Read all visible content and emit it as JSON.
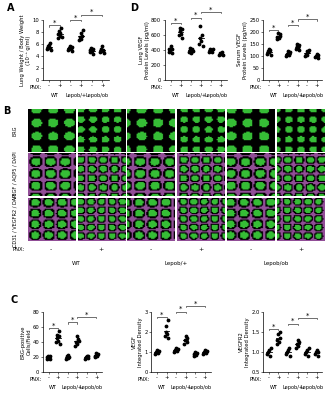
{
  "chart_data": [
    {
      "type": "scatter",
      "panel_label": "A",
      "ylabel": "Lung Weight / Body Weight\n(10⁻³ g/ml)",
      "xlabel": "PNX:",
      "categories": [
        "-",
        "+",
        "-",
        "+",
        "-",
        "+"
      ],
      "group_labels": [
        "WT",
        "Lepob/+",
        "Lepob/ob"
      ],
      "color": "#000000",
      "points": [
        [
          5.2,
          5.6,
          5.9,
          5.4,
          6.1,
          5.0
        ],
        [
          7.0,
          7.6,
          8.2,
          7.3,
          7.9,
          8.6,
          7.1
        ],
        [
          5.0,
          5.4,
          5.7,
          5.2,
          4.9,
          5.5
        ],
        [
          6.6,
          7.2,
          7.8,
          6.9,
          7.4,
          8.3
        ],
        [
          4.6,
          5.0,
          5.3,
          4.8,
          4.4,
          5.1
        ],
        [
          4.7,
          5.2,
          5.6,
          4.9,
          5.0,
          4.5
        ]
      ],
      "significance": [
        {
          "from": 0,
          "to": 1,
          "text": "*"
        },
        {
          "from": 2,
          "to": 3,
          "text": "*"
        },
        {
          "from": 3,
          "to": 5,
          "text": "*"
        }
      ],
      "ylim": [
        0,
        10
      ],
      "yticks": [
        0,
        2,
        4,
        6,
        8,
        10
      ]
    },
    {
      "type": "scatter",
      "panel_label": "D",
      "ylabel": "Lung VEGF\nProtein Levels (pg/ml)",
      "xlabel": "PNX:",
      "categories": [
        "-",
        "+",
        "-",
        "+",
        "-",
        "+"
      ],
      "group_labels": [
        "WT",
        "Lepob/+",
        "Lepob/ob"
      ],
      "color": "#000000",
      "points": [
        [
          380,
          420,
          400,
          450,
          360,
          410
        ],
        [
          600,
          650,
          700,
          620,
          560,
          680
        ],
        [
          380,
          400,
          430,
          360,
          410,
          390
        ],
        [
          480,
          560,
          720,
          520,
          600,
          450
        ],
        [
          380,
          420,
          400,
          370,
          410
        ],
        [
          330,
          360,
          350,
          380,
          340
        ]
      ],
      "significance": [
        {
          "from": 0,
          "to": 1,
          "text": "*"
        },
        {
          "from": 2,
          "to": 3,
          "text": "*"
        },
        {
          "from": 3,
          "to": 5,
          "text": "*"
        }
      ],
      "ylim": [
        0,
        800
      ],
      "yticks": [
        0,
        200,
        400,
        600,
        800
      ]
    },
    {
      "type": "scatter",
      "ylabel": "Serum VEGF\nProtein Levels (pg/ml)",
      "xlabel": "PNX:",
      "categories": [
        "-",
        "+",
        "-",
        "+",
        "-",
        "+"
      ],
      "group_labels": [
        "WT",
        "Lepob/+",
        "Lepob/ob"
      ],
      "color": "#000000",
      "points": [
        [
          110,
          120,
          130,
          115,
          125,
          105
        ],
        [
          170,
          180,
          195,
          175,
          185,
          190
        ],
        [
          100,
          110,
          120,
          105,
          115
        ],
        [
          130,
          140,
          150,
          135,
          145,
          125
        ],
        [
          100,
          110,
          120,
          105,
          115,
          125
        ],
        [
          95,
          100,
          110,
          105,
          90
        ]
      ],
      "significance": [
        {
          "from": 0,
          "to": 1,
          "text": "*"
        },
        {
          "from": 2,
          "to": 3,
          "text": "*"
        },
        {
          "from": 3,
          "to": 5,
          "text": "*"
        }
      ],
      "ylim": [
        0,
        250
      ],
      "yticks": [
        0,
        50,
        100,
        150,
        200,
        250
      ]
    },
    {
      "type": "scatter",
      "panel_label": "C",
      "ylabel": "ERG-positive\nCells/Field",
      "xlabel": "PNX:",
      "categories": [
        "-",
        "+",
        "-",
        "+",
        "-",
        "+"
      ],
      "group_labels": [
        "WT",
        "Lepob/+",
        "Lepob/ob"
      ],
      "color": "#000000",
      "points": [
        [
          18,
          20,
          22,
          19,
          21,
          17
        ],
        [
          40,
          45,
          50,
          42,
          48,
          55,
          38
        ],
        [
          18,
          21,
          23,
          19,
          20
        ],
        [
          35,
          40,
          48,
          37,
          44,
          42
        ],
        [
          18,
          20,
          22,
          19,
          21
        ],
        [
          20,
          22,
          25,
          21,
          23,
          24
        ]
      ],
      "significance": [
        {
          "from": 0,
          "to": 1,
          "text": "*"
        },
        {
          "from": 2,
          "to": 3,
          "text": "*"
        },
        {
          "from": 3,
          "to": 5,
          "text": "*"
        }
      ],
      "ylim": [
        0,
        80
      ],
      "yticks": [
        0,
        20,
        40,
        60,
        80
      ]
    },
    {
      "type": "scatter",
      "ylabel": "VEGF\nIntegrated Density",
      "xlabel": "PNX:",
      "categories": [
        "-",
        "+",
        "-",
        "+",
        "-",
        "+"
      ],
      "group_labels": [
        "WT",
        "Lepob/+",
        "Lepob/ob"
      ],
      "color": "#000000",
      "points": [
        [
          0.9,
          1.0,
          1.1,
          0.95,
          1.05
        ],
        [
          1.8,
          2.0,
          2.3,
          1.9,
          2.6,
          1.7
        ],
        [
          1.0,
          1.1,
          1.2,
          1.05,
          1.15
        ],
        [
          1.4,
          1.6,
          1.8,
          1.5,
          1.7
        ],
        [
          0.8,
          0.9,
          1.0,
          0.85,
          0.95
        ],
        [
          0.9,
          1.0,
          1.1,
          0.95,
          1.05
        ]
      ],
      "significance": [
        {
          "from": 0,
          "to": 1,
          "text": "*"
        },
        {
          "from": 2,
          "to": 3,
          "text": "*"
        },
        {
          "from": 3,
          "to": 5,
          "text": "*"
        }
      ],
      "ylim": [
        0,
        3
      ],
      "yticks": [
        0,
        1,
        2,
        3
      ]
    },
    {
      "type": "scatter",
      "ylabel": "VEGFR2\nIntegrated Density",
      "xlabel": "PNX:",
      "categories": [
        "-",
        "+",
        "-",
        "+",
        "-",
        "+"
      ],
      "group_labels": [
        "WT",
        "Lepob/+",
        "Lepob/ob"
      ],
      "color": "#000000",
      "points": [
        [
          0.95,
          1.0,
          1.05,
          0.9,
          1.1
        ],
        [
          1.2,
          1.3,
          1.45,
          1.25,
          1.35,
          1.5
        ],
        [
          0.95,
          1.0,
          1.05,
          1.1,
          0.9
        ],
        [
          1.1,
          1.2,
          1.3,
          1.15,
          1.25
        ],
        [
          0.95,
          1.0,
          1.05,
          0.9,
          1.1
        ],
        [
          0.95,
          1.0,
          1.05,
          1.0,
          0.9
        ]
      ],
      "significance": [
        {
          "from": 0,
          "to": 1,
          "text": "*"
        },
        {
          "from": 2,
          "to": 3,
          "text": "*"
        },
        {
          "from": 3,
          "to": 5,
          "text": "*"
        }
      ],
      "ylim": [
        0.5,
        2.0
      ],
      "yticks": [
        0.5,
        {
          "value": 1.0,
          "label": "1.0"
        },
        1.5,
        {
          "value": 2.0,
          "label": "2.0"
        }
      ]
    }
  ],
  "image_panel": {
    "panel_label": "B",
    "xlabel": "PNX:",
    "columns": [
      "-",
      "+",
      "-",
      "+",
      "-",
      "+"
    ],
    "group_labels": [
      "WT",
      "Lepob/+",
      "Lepob/ob"
    ],
    "rows": [
      {
        "label": "ERG",
        "colors": [
          "#3cd23c"
        ]
      },
      {
        "label": "VEGF / AQP5 / DAPI",
        "colors": [
          "#3cd23c",
          "#d070d8"
        ]
      },
      {
        "label": "CD31 / VEGFR2 / DAPI",
        "colors": [
          "#3cd23c",
          "#d070d8"
        ]
      }
    ]
  }
}
